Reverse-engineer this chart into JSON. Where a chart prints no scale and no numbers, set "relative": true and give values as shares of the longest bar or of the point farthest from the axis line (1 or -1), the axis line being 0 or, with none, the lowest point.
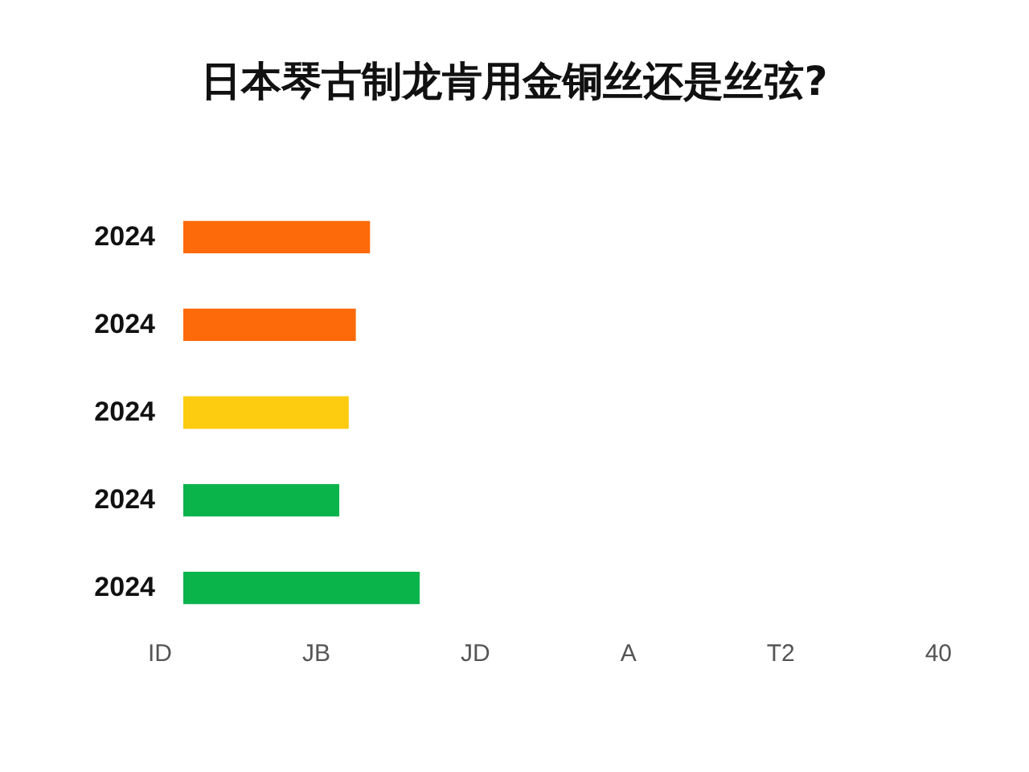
{
  "chart_data": {
    "type": "bar",
    "orientation": "horizontal",
    "relative": true,
    "title": "日本琴古制龙肯用金铜丝还是丝弦?",
    "categories": [
      "2024",
      "2024",
      "2024",
      "2024",
      "2024"
    ],
    "values": [
      0.79,
      0.73,
      0.7,
      0.66,
      1
    ],
    "colors": [
      "#fd6a0a",
      "#fd6a0a",
      "#fdcb0f",
      "#0bb44b",
      "#0bb44b"
    ],
    "annotations": [
      "ID",
      "JB",
      "JD",
      "A",
      "T2",
      "40"
    ]
  }
}
